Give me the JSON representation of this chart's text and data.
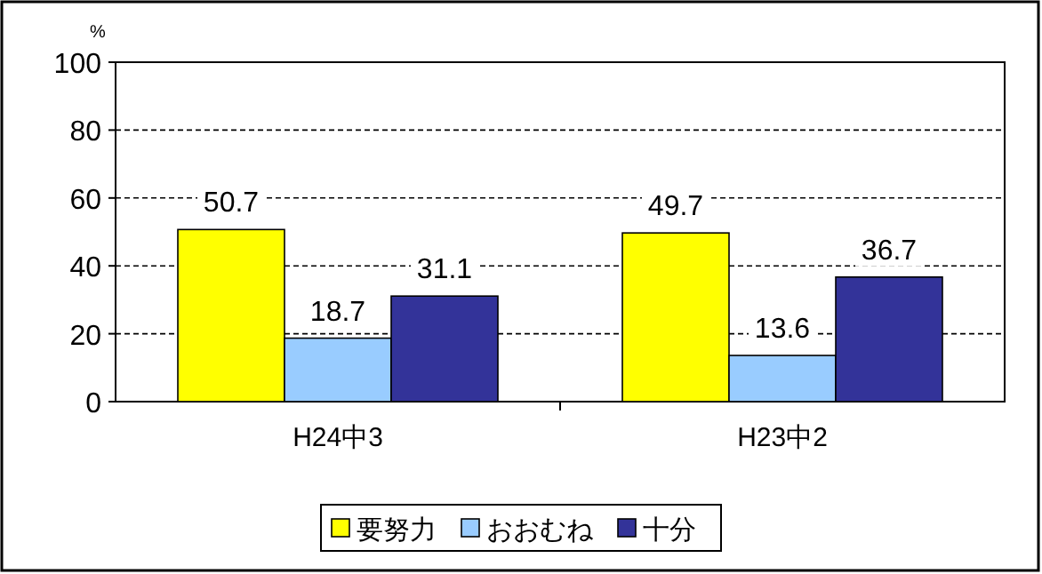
{
  "chart_data": {
    "type": "bar",
    "ylabel": "%",
    "categories": [
      "H24中3",
      "H23中2"
    ],
    "series": [
      {
        "name": "要努力",
        "color": "#ffff00",
        "values": [
          50.7,
          49.7
        ]
      },
      {
        "name": "おおむね",
        "color": "#99ccff",
        "values": [
          18.7,
          13.6
        ]
      },
      {
        "name": "十分",
        "color": "#333399",
        "values": [
          31.1,
          36.7
        ]
      }
    ],
    "ylim": [
      0,
      100
    ],
    "yticks": [
      0,
      20,
      40,
      60,
      80,
      100
    ],
    "grid": "y",
    "legend": "bottom",
    "data_labels": true
  }
}
